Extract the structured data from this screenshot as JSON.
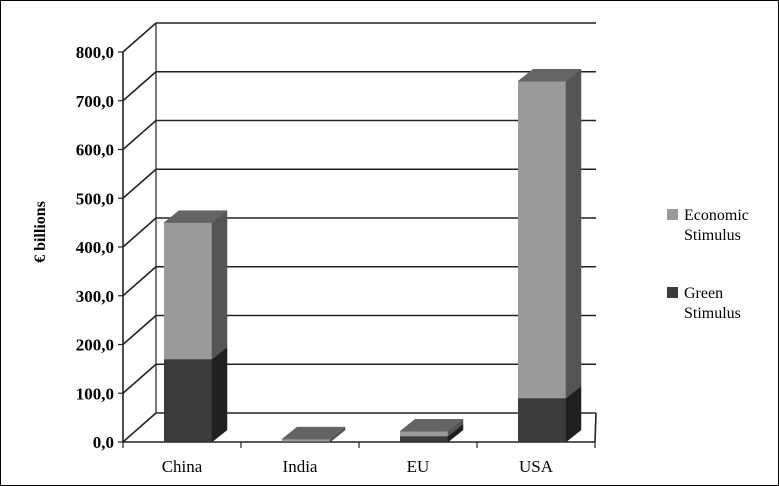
{
  "chart_data": {
    "type": "bar",
    "stacked": true,
    "three_d": true,
    "categories": [
      "China",
      "India",
      "EU",
      "USA"
    ],
    "series": [
      {
        "name": "Green Stimulus",
        "values": [
          170,
          1,
          12,
          90
        ],
        "color": "#3b3b3b"
      },
      {
        "name": "Economic Stimulus",
        "values": [
          280,
          5,
          10,
          650
        ],
        "color": "#9a9a9a"
      }
    ],
    "ylabel": "€ billions",
    "xlabel": "",
    "ylim": [
      0,
      800
    ],
    "yticks": [
      "0,0",
      "100,0",
      "200,0",
      "300,0",
      "400,0",
      "500,0",
      "600,0",
      "700,0",
      "800,0"
    ],
    "grid": true,
    "legend_position": "right",
    "legend_order": [
      "Economic Stimulus",
      "Green Stimulus"
    ]
  }
}
